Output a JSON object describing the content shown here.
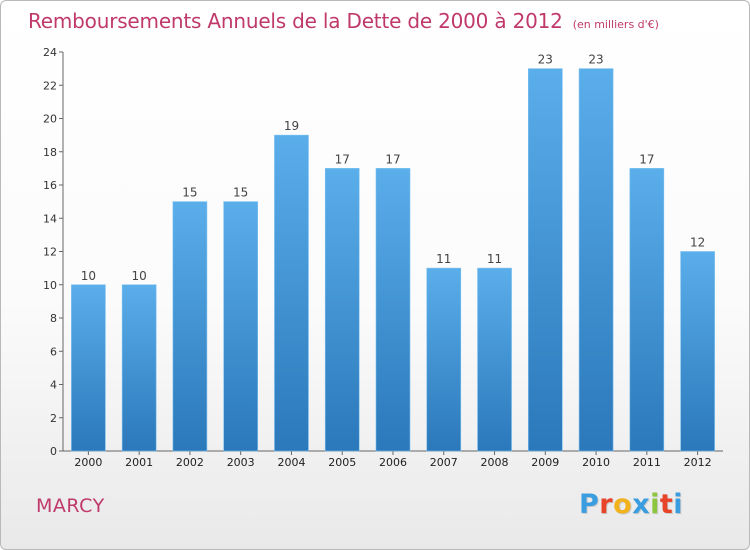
{
  "header": {
    "title": "Remboursements Annuels de la Dette de 2000 à 2012",
    "unit": "(en milliers d'€)"
  },
  "footer": {
    "commune": "MARCY",
    "logo_letters": [
      "P",
      "r",
      "o",
      "x",
      "i",
      "t",
      "i"
    ],
    "logo_colors": [
      "#3a9de0",
      "#e8442a",
      "#f2b21c",
      "#3a9de0",
      "#8cc63e",
      "#e8442a",
      "#3a9de0"
    ]
  },
  "colors": {
    "bar_top": "#5aaeea",
    "bar_bottom": "#2b78ba",
    "title": "#c0396b",
    "grid": "#d0d0d0"
  },
  "chart_data": {
    "type": "bar",
    "categories": [
      "2000",
      "2001",
      "2002",
      "2003",
      "2004",
      "2005",
      "2006",
      "2007",
      "2008",
      "2009",
      "2010",
      "2011",
      "2012"
    ],
    "values": [
      10,
      10,
      15,
      15,
      19,
      17,
      17,
      11,
      11,
      23,
      23,
      17,
      12
    ],
    "data_labels": [
      "10",
      "10",
      "15",
      "15",
      "19",
      "17",
      "17",
      "11",
      "11",
      "23",
      "23",
      "17",
      "12"
    ],
    "title": "Remboursements Annuels de la Dette de 2000 à 2012",
    "subtitle": "(en milliers d'€)",
    "xlabel": "",
    "ylabel": "",
    "ylim": [
      0,
      24
    ],
    "yticks": [
      0,
      2,
      4,
      6,
      8,
      10,
      12,
      14,
      16,
      18,
      20,
      22,
      24
    ],
    "ytick_labels": [
      "0",
      "2",
      "4",
      "6",
      "8",
      "10",
      "12",
      "14",
      "16",
      "18",
      "20",
      "22",
      "24"
    ],
    "grid": false,
    "legend": "none"
  }
}
